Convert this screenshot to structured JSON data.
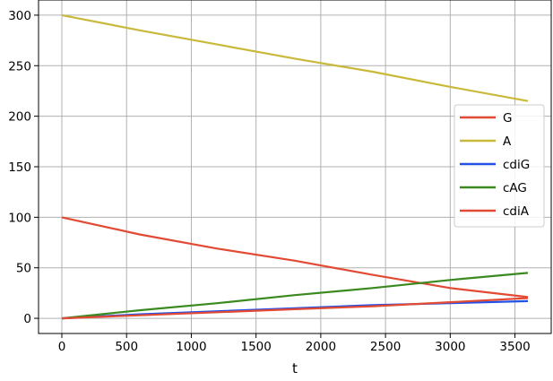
{
  "chart_data": {
    "type": "line",
    "title": "",
    "xlabel": "t",
    "ylabel": "",
    "xlim": [
      -180,
      3780
    ],
    "ylim": [
      -15,
      315
    ],
    "grid": true,
    "legend_position": "center-right",
    "x_ticks": [
      0,
      500,
      1000,
      1500,
      2000,
      2500,
      3000,
      3500
    ],
    "y_ticks": [
      0,
      50,
      100,
      150,
      200,
      250,
      300
    ],
    "series": [
      {
        "name": "G",
        "color": "#e24a33",
        "x": [
          0,
          600,
          1200,
          1800,
          2400,
          3000,
          3600
        ],
        "y": [
          100,
          83,
          69,
          57,
          43,
          30,
          21
        ]
      },
      {
        "name": "A",
        "color": "#c8b93a",
        "x": [
          0,
          600,
          1200,
          1800,
          2400,
          3000,
          3600
        ],
        "y": [
          300,
          285,
          271,
          257,
          244,
          229,
          215
        ]
      },
      {
        "name": "cdiG",
        "color": "#2350e6",
        "x": [
          0,
          600,
          1200,
          1800,
          2400,
          3000,
          3600
        ],
        "y": [
          0,
          4,
          7,
          10,
          13,
          15,
          17
        ]
      },
      {
        "name": "cAG",
        "color": "#3a8a1f",
        "x": [
          0,
          600,
          1200,
          1800,
          2400,
          3000,
          3600
        ],
        "y": [
          0,
          8,
          15,
          23,
          30,
          38,
          45
        ]
      },
      {
        "name": "cdiA",
        "color": "#e24a33",
        "x": [
          0,
          600,
          1200,
          1800,
          2400,
          3000,
          3600
        ],
        "y": [
          0,
          3,
          6,
          9,
          12,
          16,
          20
        ]
      }
    ]
  }
}
